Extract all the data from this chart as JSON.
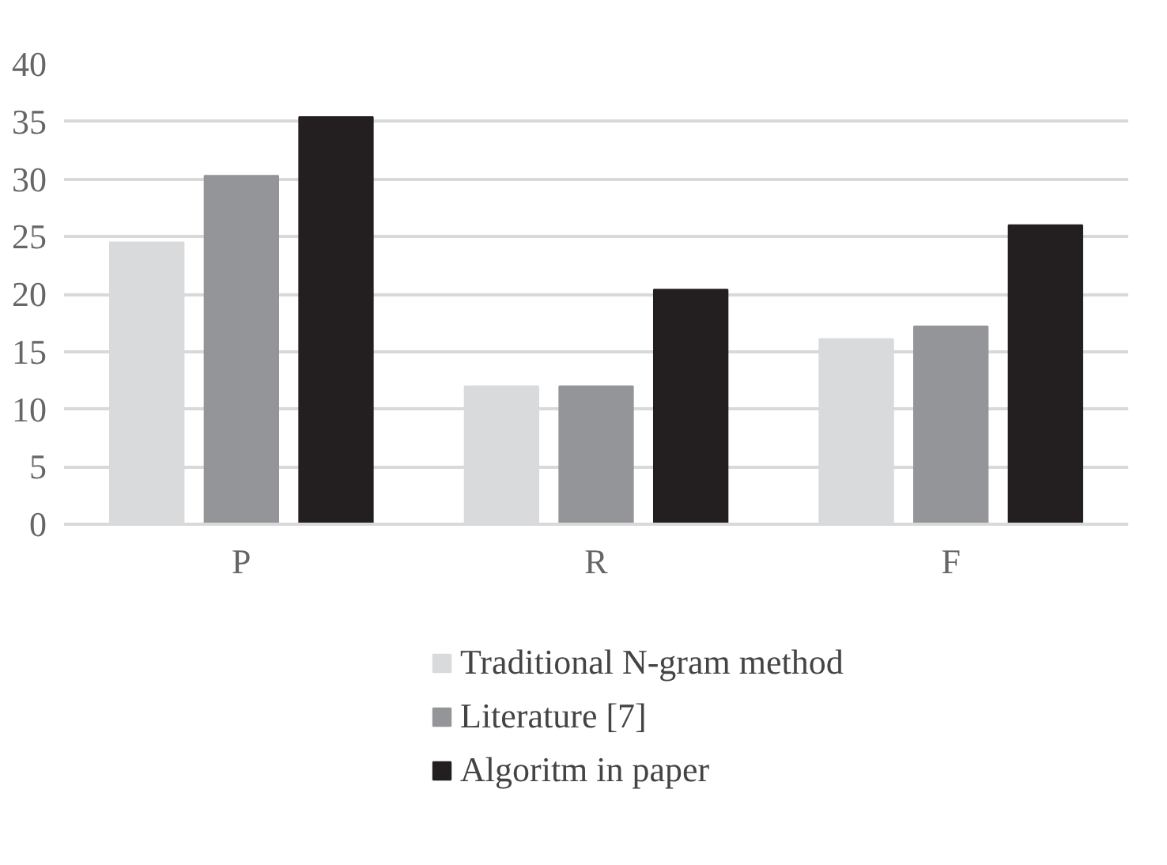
{
  "chart_data": {
    "type": "bar",
    "categories": [
      "P",
      "R",
      "F"
    ],
    "series": [
      {
        "name": "Traditional N-gram method",
        "color": "#d9dadc",
        "values": [
          24.5,
          12.0,
          16.1
        ]
      },
      {
        "name": "Literature [7]",
        "color": "#949598",
        "values": [
          30.3,
          12.0,
          17.2
        ]
      },
      {
        "name": "Algoritm in paper",
        "color": "#231f20",
        "values": [
          35.4,
          20.4,
          26.0
        ]
      }
    ],
    "ylim": [
      0,
      40
    ],
    "yticks": [
      0,
      5,
      10,
      15,
      20,
      25,
      30,
      35,
      40
    ],
    "grid": "y",
    "legend": "bottom"
  }
}
